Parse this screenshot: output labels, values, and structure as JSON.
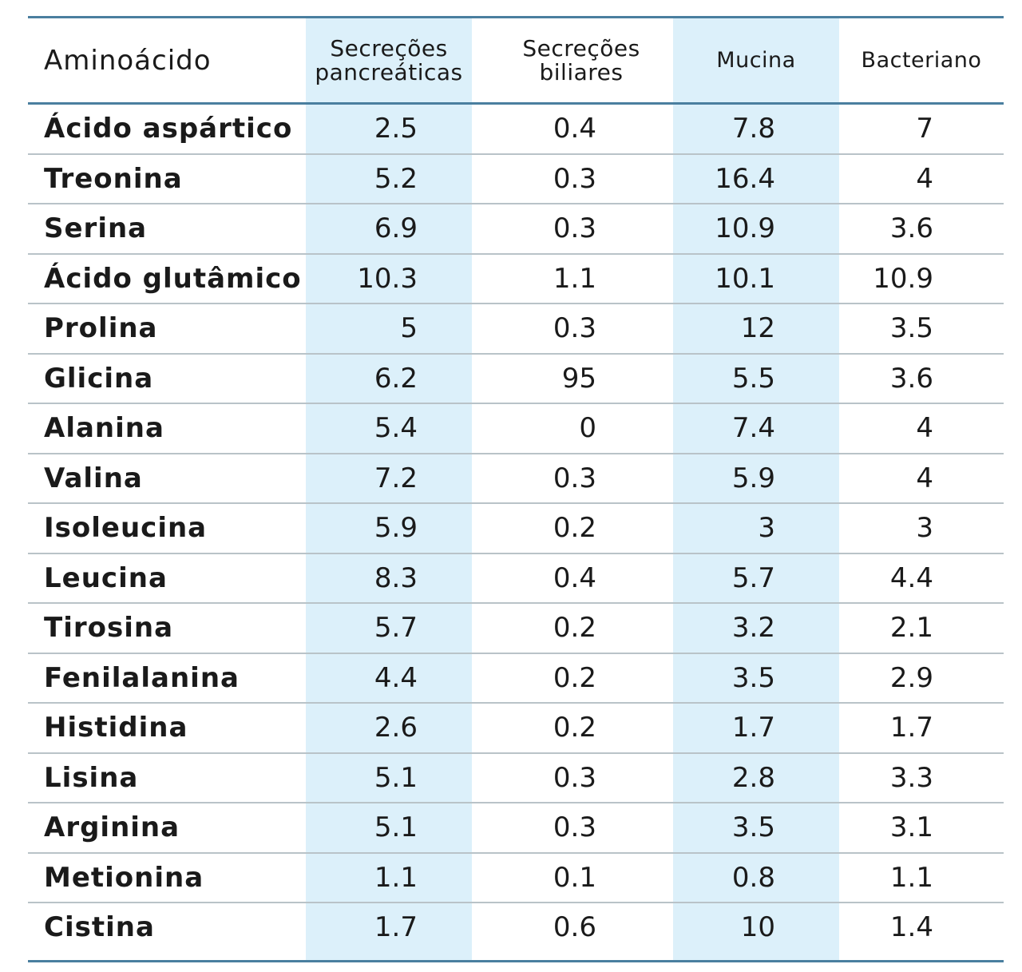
{
  "table": {
    "headers": {
      "amino_acid": "Aminoácido",
      "pancreatic": "Secreções pancreáticas",
      "biliary": "Secreções biliares",
      "mucin": "Mucina",
      "bacterial": "Bacteriano"
    },
    "rows": [
      {
        "name": "Ácido aspártico",
        "pancreatic": "2.5",
        "biliary": "0.4",
        "mucin": "7.8",
        "bacterial": "7"
      },
      {
        "name": "Treonina",
        "pancreatic": "5.2",
        "biliary": "0.3",
        "mucin": "16.4",
        "bacterial": "4"
      },
      {
        "name": "Serina",
        "pancreatic": "6.9",
        "biliary": "0.3",
        "mucin": "10.9",
        "bacterial": "3.6"
      },
      {
        "name": "Ácido glutâmico",
        "pancreatic": "10.3",
        "biliary": "1.1",
        "mucin": "10.1",
        "bacterial": "10.9"
      },
      {
        "name": "Prolina",
        "pancreatic": "5",
        "biliary": "0.3",
        "mucin": "12",
        "bacterial": "3.5"
      },
      {
        "name": "Glicina",
        "pancreatic": "6.2",
        "biliary": "95",
        "mucin": "5.5",
        "bacterial": "3.6"
      },
      {
        "name": "Alanina",
        "pancreatic": "5.4",
        "biliary": "0",
        "mucin": "7.4",
        "bacterial": "4"
      },
      {
        "name": "Valina",
        "pancreatic": "7.2",
        "biliary": "0.3",
        "mucin": "5.9",
        "bacterial": "4"
      },
      {
        "name": "Isoleucina",
        "pancreatic": "5.9",
        "biliary": "0.2",
        "mucin": "3",
        "bacterial": "3"
      },
      {
        "name": "Leucina",
        "pancreatic": "8.3",
        "biliary": "0.4",
        "mucin": "5.7",
        "bacterial": "4.4"
      },
      {
        "name": "Tirosina",
        "pancreatic": "5.7",
        "biliary": "0.2",
        "mucin": "3.2",
        "bacterial": "2.1"
      },
      {
        "name": "Fenilalanina",
        "pancreatic": "4.4",
        "biliary": "0.2",
        "mucin": "3.5",
        "bacterial": "2.9"
      },
      {
        "name": "Histidina",
        "pancreatic": "2.6",
        "biliary": "0.2",
        "mucin": "1.7",
        "bacterial": "1.7"
      },
      {
        "name": "Lisina",
        "pancreatic": "5.1",
        "biliary": "0.3",
        "mucin": "2.8",
        "bacterial": "3.3"
      },
      {
        "name": "Arginina",
        "pancreatic": "5.1",
        "biliary": "0.3",
        "mucin": "3.5",
        "bacterial": "3.1"
      },
      {
        "name": "Metionina",
        "pancreatic": "1.1",
        "biliary": "0.1",
        "mucin": "0.8",
        "bacterial": "1.1"
      },
      {
        "name": "Cistina",
        "pancreatic": "1.7",
        "biliary": "0.6",
        "mucin": "10",
        "bacterial": "1.4"
      }
    ],
    "colors": {
      "rule": "#4a7f9f",
      "row_separator": "#b9c3c8",
      "shaded_column": "#dcf0fa"
    }
  }
}
